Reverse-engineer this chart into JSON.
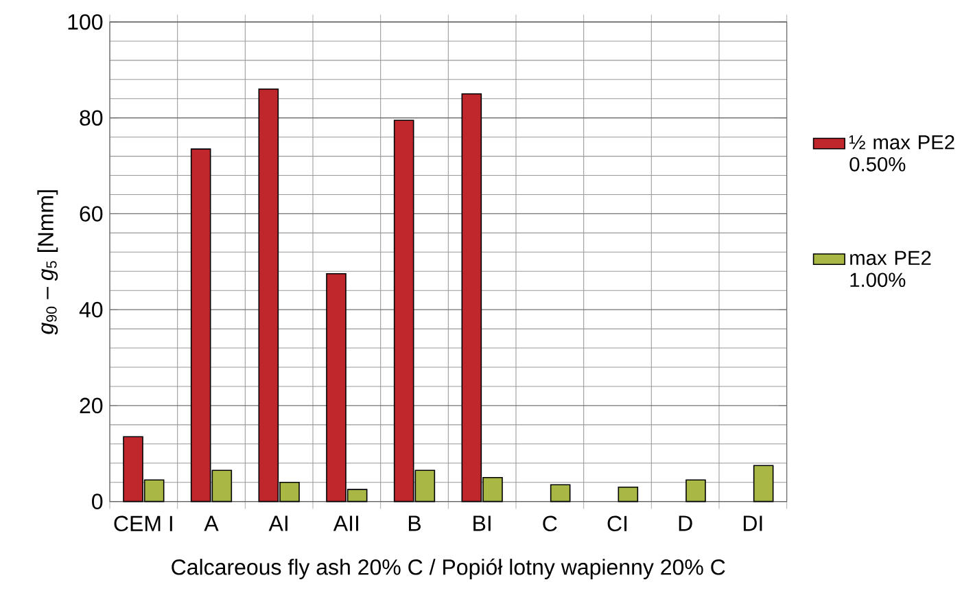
{
  "chart_data": {
    "type": "bar",
    "xlabel": "Calcareous fly ash 20% C / Popiół lotny wapienny 20% C",
    "ylabel": "*g*$_{90}$ – *g*$_{5}$ [Nmm]",
    "categories": [
      "CEM I",
      "A",
      "AI",
      "AII",
      "B",
      "BI",
      "C",
      "CI",
      "D",
      "DI"
    ],
    "series": [
      {
        "name": "½ max PE2 0.50%",
        "color": "#c0272d",
        "values": [
          13.5,
          73.5,
          86,
          47.5,
          79.5,
          85,
          null,
          null,
          null,
          null
        ]
      },
      {
        "name": "max PE2 1.00%",
        "color": "#a9b844",
        "values": [
          4.5,
          6.5,
          4,
          2.5,
          6.5,
          5,
          3.5,
          3,
          4.5,
          7.5
        ]
      }
    ],
    "ylim": [
      0,
      100
    ],
    "yticks": [
      0,
      20,
      40,
      60,
      80,
      100
    ],
    "grid": true,
    "legend": "right"
  }
}
